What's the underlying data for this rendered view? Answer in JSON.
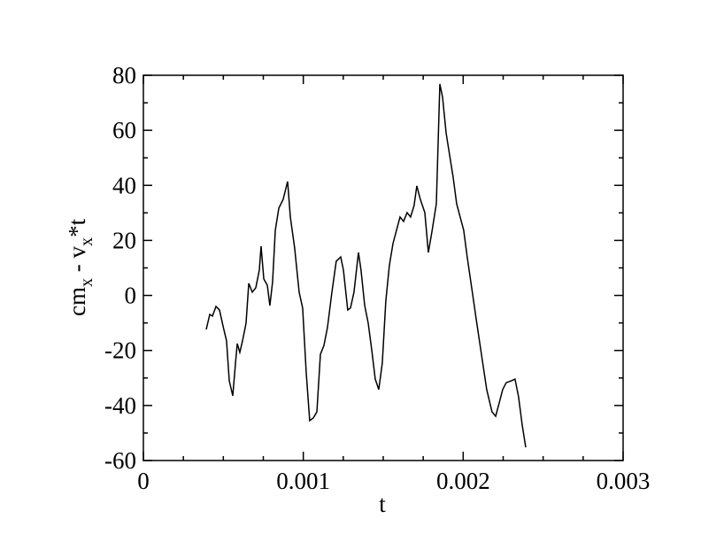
{
  "chart_data": {
    "type": "line",
    "xlabel": "t",
    "ylabel": [
      "cm",
      "x",
      " - v",
      "x",
      "*t"
    ],
    "xlim": [
      0,
      0.003
    ],
    "xticks": [
      0,
      0.001,
      0.002,
      0.003
    ],
    "xminorticks": [
      0.00025,
      0.0005,
      0.00075,
      0.00125,
      0.0015,
      0.00175,
      0.00225,
      0.0025,
      0.00275
    ],
    "ylim": [
      -60,
      80
    ],
    "yticks": [
      -60,
      -40,
      -20,
      0,
      20,
      40,
      60,
      80
    ],
    "yminorticks": [
      -50,
      -30,
      -10,
      10,
      30,
      50,
      70
    ],
    "series": [
      {
        "color": "#000000",
        "x": [
          0.000393,
          0.000415,
          0.000432,
          0.000454,
          0.000476,
          0.000498,
          0.00052,
          0.000537,
          0.000559,
          0.000576,
          0.000587,
          0.000603,
          0.00062,
          0.000642,
          0.000659,
          0.000681,
          0.000703,
          0.000725,
          0.000736,
          0.000753,
          0.000775,
          0.000791,
          0.000808,
          0.000825,
          0.000847,
          0.000874,
          0.000902,
          0.000919,
          0.000946,
          0.000974,
          0.000996,
          0.001018,
          0.00104,
          0.001063,
          0.001085,
          0.001107,
          0.001129,
          0.001151,
          0.001179,
          0.001206,
          0.001234,
          0.001251,
          0.001278,
          0.001295,
          0.001317,
          0.001345,
          0.001361,
          0.001384,
          0.001406,
          0.001428,
          0.00145,
          0.001472,
          0.001494,
          0.001516,
          0.001538,
          0.001561,
          0.001583,
          0.001605,
          0.001627,
          0.001649,
          0.001671,
          0.001693,
          0.00171,
          0.001732,
          0.00176,
          0.001782,
          0.001804,
          0.001832,
          0.001854,
          0.001871,
          0.001893,
          0.001915,
          0.001937,
          0.001959,
          0.001981,
          0.002003,
          0.002025,
          0.002053,
          0.002081,
          0.002114,
          0.002147,
          0.00218,
          0.002203,
          0.002225,
          0.002247,
          0.002269,
          0.002302,
          0.002324,
          0.002346,
          0.002369,
          0.002391
        ],
        "values": [
          -12.4,
          -6.9,
          -7.5,
          -4.0,
          -5.3,
          -11.1,
          -16.5,
          -31.0,
          -36.5,
          -24.6,
          -17.5,
          -20.7,
          -16.5,
          -10.1,
          4.4,
          1.2,
          2.8,
          9.2,
          17.9,
          6.0,
          3.7,
          -3.7,
          5.0,
          23.7,
          31.7,
          34.9,
          41.4,
          28.5,
          17.2,
          1.2,
          -4.6,
          -27.8,
          -45.5,
          -44.5,
          -42.3,
          -21.4,
          -18.2,
          -11.7,
          1.2,
          12.4,
          14.0,
          9.2,
          -5.3,
          -4.6,
          1.2,
          15.6,
          9.2,
          -3.7,
          -10.1,
          -19.8,
          -30.4,
          -34.2,
          -24.6,
          -2.1,
          10.8,
          18.9,
          23.7,
          28.5,
          26.9,
          30.1,
          28.5,
          32.7,
          39.8,
          34.9,
          30.1,
          15.6,
          23.0,
          33.3,
          76.8,
          72.0,
          59.1,
          51.0,
          43.0,
          33.3,
          28.5,
          23.7,
          14.0,
          2.8,
          -8.5,
          -21.4,
          -34.2,
          -42.3,
          -43.9,
          -39.1,
          -34.2,
          -31.7,
          -31.0,
          -30.4,
          -36.8,
          -47.1,
          -55.2
        ]
      }
    ]
  }
}
